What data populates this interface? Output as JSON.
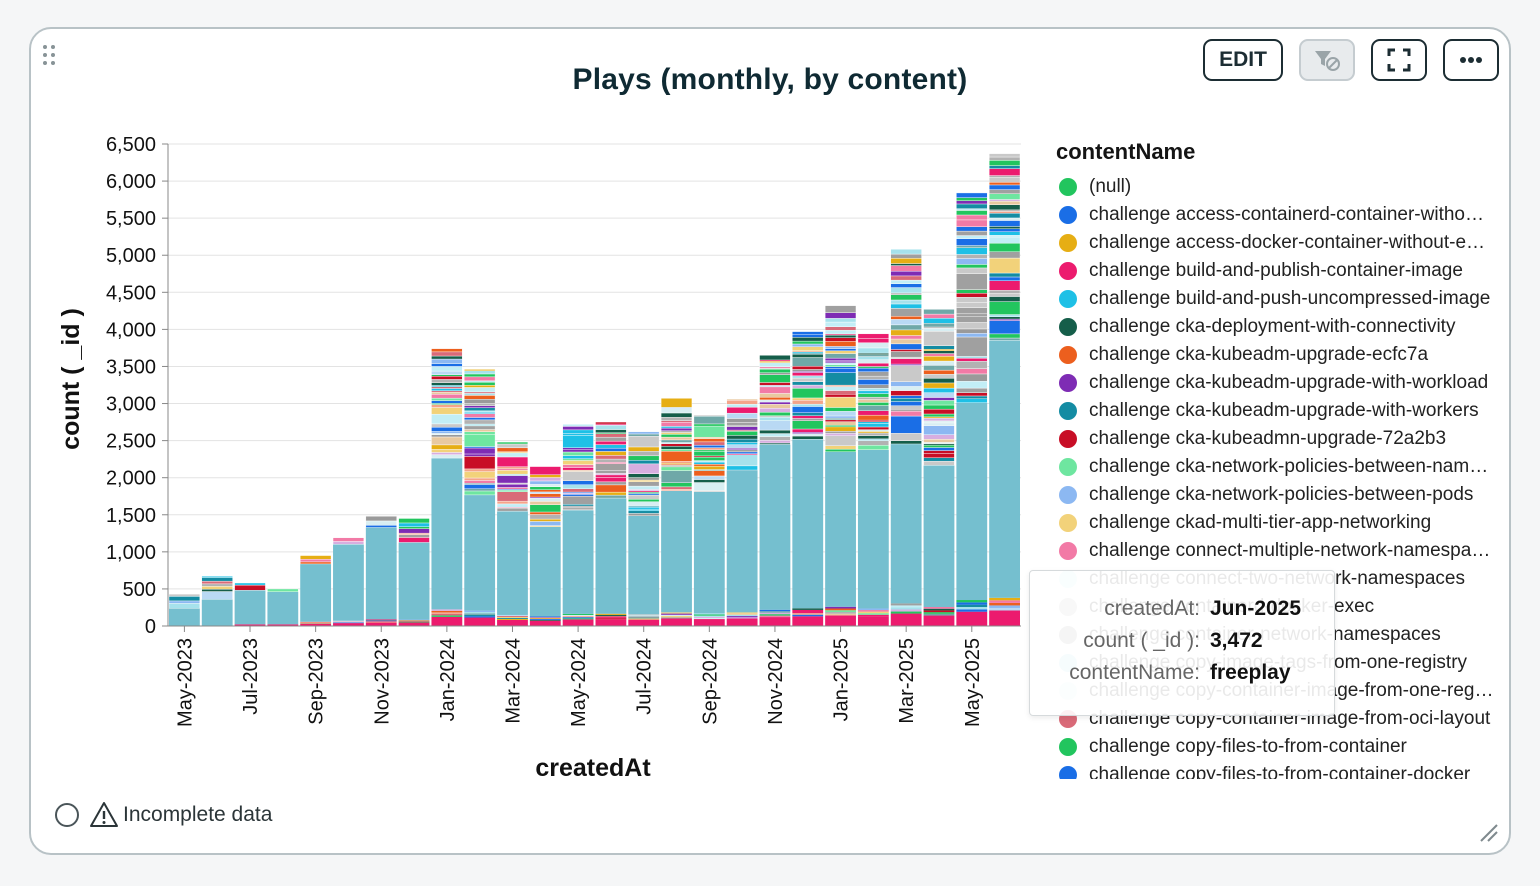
{
  "card": {
    "title": "Plays (monthly, by content)",
    "toolbar": {
      "edit_label": "EDIT"
    },
    "footer": {
      "status_text": "Incomplete data"
    }
  },
  "chart_data": {
    "type": "bar",
    "stacked": true,
    "title": "Plays (monthly, by content)",
    "xlabel": "createdAt",
    "ylabel": "count ( _id )",
    "ylim": [
      0,
      6500
    ],
    "yticks": [
      0,
      500,
      1000,
      1500,
      2000,
      2500,
      3000,
      3500,
      4000,
      4500,
      5000,
      5500,
      6000,
      6500
    ],
    "x_tick_labels": [
      "May-2023",
      "Jul-2023",
      "Sep-2023",
      "Nov-2023",
      "Jan-2024",
      "Mar-2024",
      "May-2024",
      "Jul-2024",
      "Sep-2024",
      "Nov-2024",
      "Jan-2025",
      "Mar-2025",
      "May-2025"
    ],
    "categories": [
      "May-2023",
      "Jun-2023",
      "Jul-2023",
      "Aug-2023",
      "Sep-2023",
      "Oct-2023",
      "Nov-2023",
      "Dec-2023",
      "Jan-2024",
      "Feb-2024",
      "Mar-2024",
      "Apr-2024",
      "May-2024",
      "Jun-2024",
      "Jul-2024",
      "Aug-2024",
      "Sep-2024",
      "Oct-2024",
      "Nov-2024",
      "Dec-2024",
      "Jan-2025",
      "Feb-2025",
      "Mar-2025",
      "Apr-2025",
      "May-2025",
      "Jun-2025"
    ],
    "totals": [
      430,
      670,
      580,
      500,
      950,
      1190,
      1480,
      1450,
      3740,
      3460,
      2480,
      2150,
      2720,
      2750,
      2620,
      3070,
      2840,
      3060,
      3650,
      3970,
      4320,
      3940,
      5080,
      4270,
      5840,
      6370
    ],
    "freeplay": [
      240,
      360,
      460,
      440,
      780,
      1030,
      1240,
      1040,
      2040,
      1560,
      1400,
      1210,
      1400,
      1560,
      1330,
      1640,
      1640,
      1920,
      2230,
      2280,
      2090,
      2140,
      2150,
      1910,
      2660,
      3472
    ],
    "legend_title": "contentName",
    "legend": [
      {
        "name": "(null)",
        "color": "#22c55e"
      },
      {
        "name": "challenge access-containerd-container-without-ctr",
        "color": "#1a6ee6"
      },
      {
        "name": "challenge access-docker-container-without-exec",
        "color": "#e6ae14"
      },
      {
        "name": "challenge build-and-publish-container-image",
        "color": "#ec1b6e"
      },
      {
        "name": "challenge build-and-push-uncompressed-image",
        "color": "#1ec0e6"
      },
      {
        "name": "challenge cka-deployment-with-connectivity",
        "color": "#155e4a"
      },
      {
        "name": "challenge cka-kubeadm-upgrade-ecfc7a",
        "color": "#ec5f1e"
      },
      {
        "name": "challenge cka-kubeadm-upgrade-with-workload",
        "color": "#7e2cb4"
      },
      {
        "name": "challenge cka-kubeadm-upgrade-with-workers",
        "color": "#148ca3"
      },
      {
        "name": "challenge cka-kubeadmn-upgrade-72a2b3",
        "color": "#c80e26"
      },
      {
        "name": "challenge cka-network-policies-between-namespaces",
        "color": "#6ee6a0"
      },
      {
        "name": "challenge cka-network-policies-between-pods",
        "color": "#8cb8f2"
      },
      {
        "name": "challenge ckad-multi-tier-app-networking",
        "color": "#f2d27a"
      },
      {
        "name": "challenge connect-multiple-network-namespaces",
        "color": "#f27aa6"
      },
      {
        "name": "challenge connect-two-network-namespaces",
        "color": "#c2eef6"
      },
      {
        "name": "challenge containerd-docker-exec",
        "color": "#b2b2b2"
      },
      {
        "name": "challenge container-network-namespaces",
        "color": "#9a9a9a"
      },
      {
        "name": "challenge copy-image-tags-from-one-registry",
        "color": "#a6e2ec"
      },
      {
        "name": "challenge copy-container-image-from-one-registry",
        "color": "#d8eef2"
      },
      {
        "name": "challenge copy-container-image-from-oci-layout",
        "color": "#d96a78"
      },
      {
        "name": "challenge copy-files-to-from-container",
        "color": "#22c55e"
      },
      {
        "name": "challenge copy-files-to-from-container-docker",
        "color": "#1a6ee6"
      }
    ],
    "tooltip": {
      "createdAt_key": "createdAt:",
      "createdAt_val": "Jun-2025",
      "count_key": "count ( _id ):",
      "count_val": "3,472",
      "content_key": "contentName:",
      "content_val": "freeplay"
    }
  }
}
